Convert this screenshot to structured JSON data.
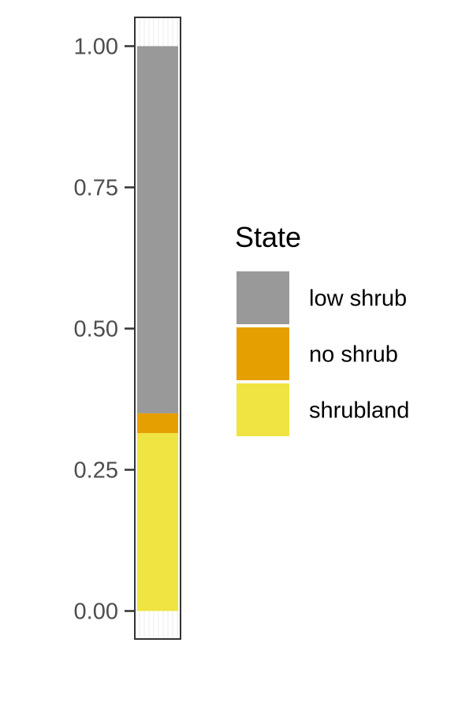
{
  "chart_data": {
    "type": "bar",
    "stacked": true,
    "categories": [
      ""
    ],
    "series": [
      {
        "name": "shrubland",
        "values": [
          0.315
        ],
        "color": "#F0E442"
      },
      {
        "name": "no shrub",
        "values": [
          0.035
        ],
        "color": "#E69F00"
      },
      {
        "name": "low shrub",
        "values": [
          0.65
        ],
        "color": "#999999"
      }
    ],
    "ylim": [
      0,
      1
    ],
    "yticks": [
      "0.00",
      "0.25",
      "0.50",
      "0.75",
      "1.00"
    ],
    "ytick_values": [
      0,
      0.25,
      0.5,
      0.75,
      1.0
    ],
    "xlabel": "",
    "ylabel": "",
    "grid": true,
    "legend": {
      "title": "State",
      "position": "right",
      "entries": [
        {
          "label": "low shrub",
          "color": "#999999"
        },
        {
          "label": "no shrub",
          "color": "#E69F00"
        },
        {
          "label": "shrubland",
          "color": "#F0E442"
        }
      ]
    }
  }
}
